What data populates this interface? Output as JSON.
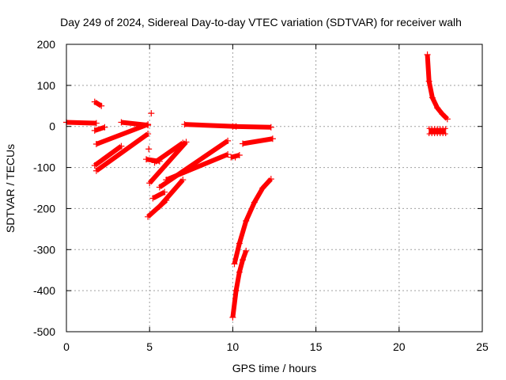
{
  "chart_data": {
    "type": "scatter",
    "title": "Day 249 of 2024, Sidereal Day-to-day VTEC variation (SDTVAR) for receiver walh",
    "xlabel": "GPS time / hours",
    "ylabel": "SDTVAR / TECUs",
    "xlim": [
      0,
      25
    ],
    "ylim": [
      -500,
      200
    ],
    "xticks": [
      "0",
      "5",
      "10",
      "15",
      "20",
      "25"
    ],
    "yticks": [
      "200",
      "100",
      "0",
      "-100",
      "-200",
      "-300",
      "-400",
      "-500"
    ],
    "grid": true,
    "marker": "+",
    "series_color": "#ff0000",
    "segments": [
      {
        "x": [
          0.0,
          1.8
        ],
        "y": [
          10,
          8
        ]
      },
      {
        "x": [
          1.7,
          2.1
        ],
        "y": [
          60,
          50
        ]
      },
      {
        "x": [
          1.7,
          2.3
        ],
        "y": [
          -10,
          -2
        ]
      },
      {
        "x": [
          1.8,
          4.9
        ],
        "y": [
          -43,
          5
        ]
      },
      {
        "x": [
          1.7,
          3.3
        ],
        "y": [
          -95,
          -48
        ]
      },
      {
        "x": [
          1.8,
          4.9
        ],
        "y": [
          -108,
          -18
        ]
      },
      {
        "x": [
          3.3,
          4.9
        ],
        "y": [
          10,
          3
        ]
      },
      {
        "x": [
          4.8,
          5.6
        ],
        "y": [
          -80,
          -85
        ]
      },
      {
        "x": [
          4.9,
          6.0
        ],
        "y": [
          -220,
          -180
        ]
      },
      {
        "x": [
          5.2,
          5.9
        ],
        "y": [
          -175,
          -160
        ]
      },
      {
        "x": [
          5.0,
          7.2
        ],
        "y": [
          -138,
          -38
        ]
      },
      {
        "x": [
          5.3,
          7.0
        ],
        "y": [
          -88,
          -40
        ]
      },
      {
        "x": [
          5.6,
          7.0
        ],
        "y": [
          -195,
          -130
        ]
      },
      {
        "x": [
          5.6,
          9.7
        ],
        "y": [
          -148,
          -35
        ]
      },
      {
        "x": [
          6.0,
          9.7
        ],
        "y": [
          -130,
          -68
        ]
      },
      {
        "x": [
          7.1,
          10.2
        ],
        "y": [
          5,
          0
        ]
      },
      {
        "x": [
          10.0,
          12.3
        ],
        "y": [
          0,
          -2
        ]
      },
      {
        "x": [
          10.6,
          12.4
        ],
        "y": [
          -42,
          -30
        ]
      },
      {
        "x": [
          9.9,
          10.4
        ],
        "y": [
          -75,
          -70
        ]
      }
    ],
    "curves": [
      {
        "x": [
          10.1,
          10.4,
          10.8,
          11.3,
          11.8,
          12.3
        ],
        "y": [
          -335,
          -285,
          -230,
          -185,
          -150,
          -128
        ]
      },
      {
        "x": [
          10.0,
          10.2,
          10.4,
          10.6,
          10.8
        ],
        "y": [
          -465,
          -400,
          -355,
          -325,
          -303
        ]
      },
      {
        "x": [
          21.7,
          21.8,
          22.0,
          22.3,
          22.6,
          22.9
        ],
        "y": [
          175,
          110,
          70,
          45,
          30,
          18
        ]
      }
    ],
    "clusters": [
      {
        "x": [
          21.8,
          22.8
        ],
        "y": [
          -5,
          -18
        ]
      }
    ],
    "points": [
      {
        "x": 5.1,
        "y": 32
      },
      {
        "x": 4.95,
        "y": -55
      },
      {
        "x": 10.15,
        "y": -75
      }
    ]
  }
}
